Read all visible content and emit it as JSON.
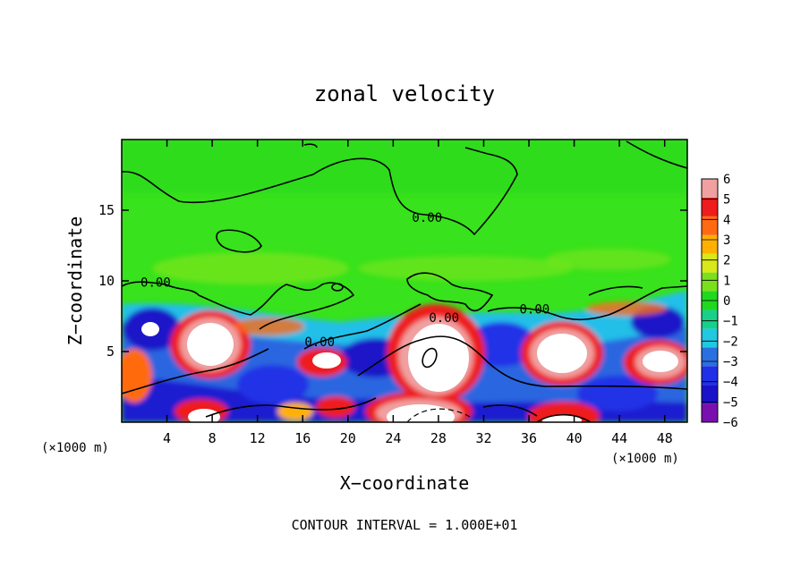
{
  "chart_data": {
    "type": "heatmap",
    "title": "zonal velocity",
    "xlabel": "X−coordinate",
    "ylabel": "Z−coordinate",
    "x_unit_left": "(×1000 m)",
    "x_unit_right": "(×1000 m)",
    "footer": "CONTOUR INTERVAL = 1.000E+01",
    "xlim": [
      0,
      50
    ],
    "ylim": [
      0,
      20
    ],
    "x_ticks": [
      4,
      8,
      12,
      16,
      20,
      24,
      28,
      32,
      36,
      40,
      44,
      48
    ],
    "x_tick_labels": [
      "4",
      "8",
      "12",
      "16",
      "20",
      "24",
      "28",
      "32",
      "36",
      "40",
      "44",
      "48"
    ],
    "y_ticks": [
      5,
      10,
      15
    ],
    "y_tick_labels": [
      "5",
      "10",
      "15"
    ],
    "contour_labels": [
      {
        "text": "0.00",
        "x": 27,
        "y": 14.5
      },
      {
        "text": "0.00",
        "x": 3,
        "y": 9.9
      },
      {
        "text": "0.00",
        "x": 17.5,
        "y": 5.7
      },
      {
        "text": "0.00",
        "x": 28.5,
        "y": 7.4
      },
      {
        "text": "0.00",
        "x": 36.5,
        "y": 8.0
      }
    ],
    "colorbar": {
      "levels": [
        -6,
        -5,
        -4,
        -3,
        -2,
        -1,
        0,
        1,
        2,
        3,
        4,
        5,
        6
      ],
      "labels": [
        "−6",
        "−5",
        "−4",
        "−3",
        "−2",
        "−1",
        "0",
        "1",
        "2",
        "3",
        "4",
        "5",
        "6"
      ],
      "colors": [
        "#7a0fb0",
        "#1a12c8",
        "#2030e6",
        "#2a70e0",
        "#20c8e0",
        "#18d08a",
        "#20d820",
        "#7be01c",
        "#d8e818",
        "#ffb000",
        "#ff6a10",
        "#ee1c1c",
        "#f0a0a0"
      ]
    }
  }
}
